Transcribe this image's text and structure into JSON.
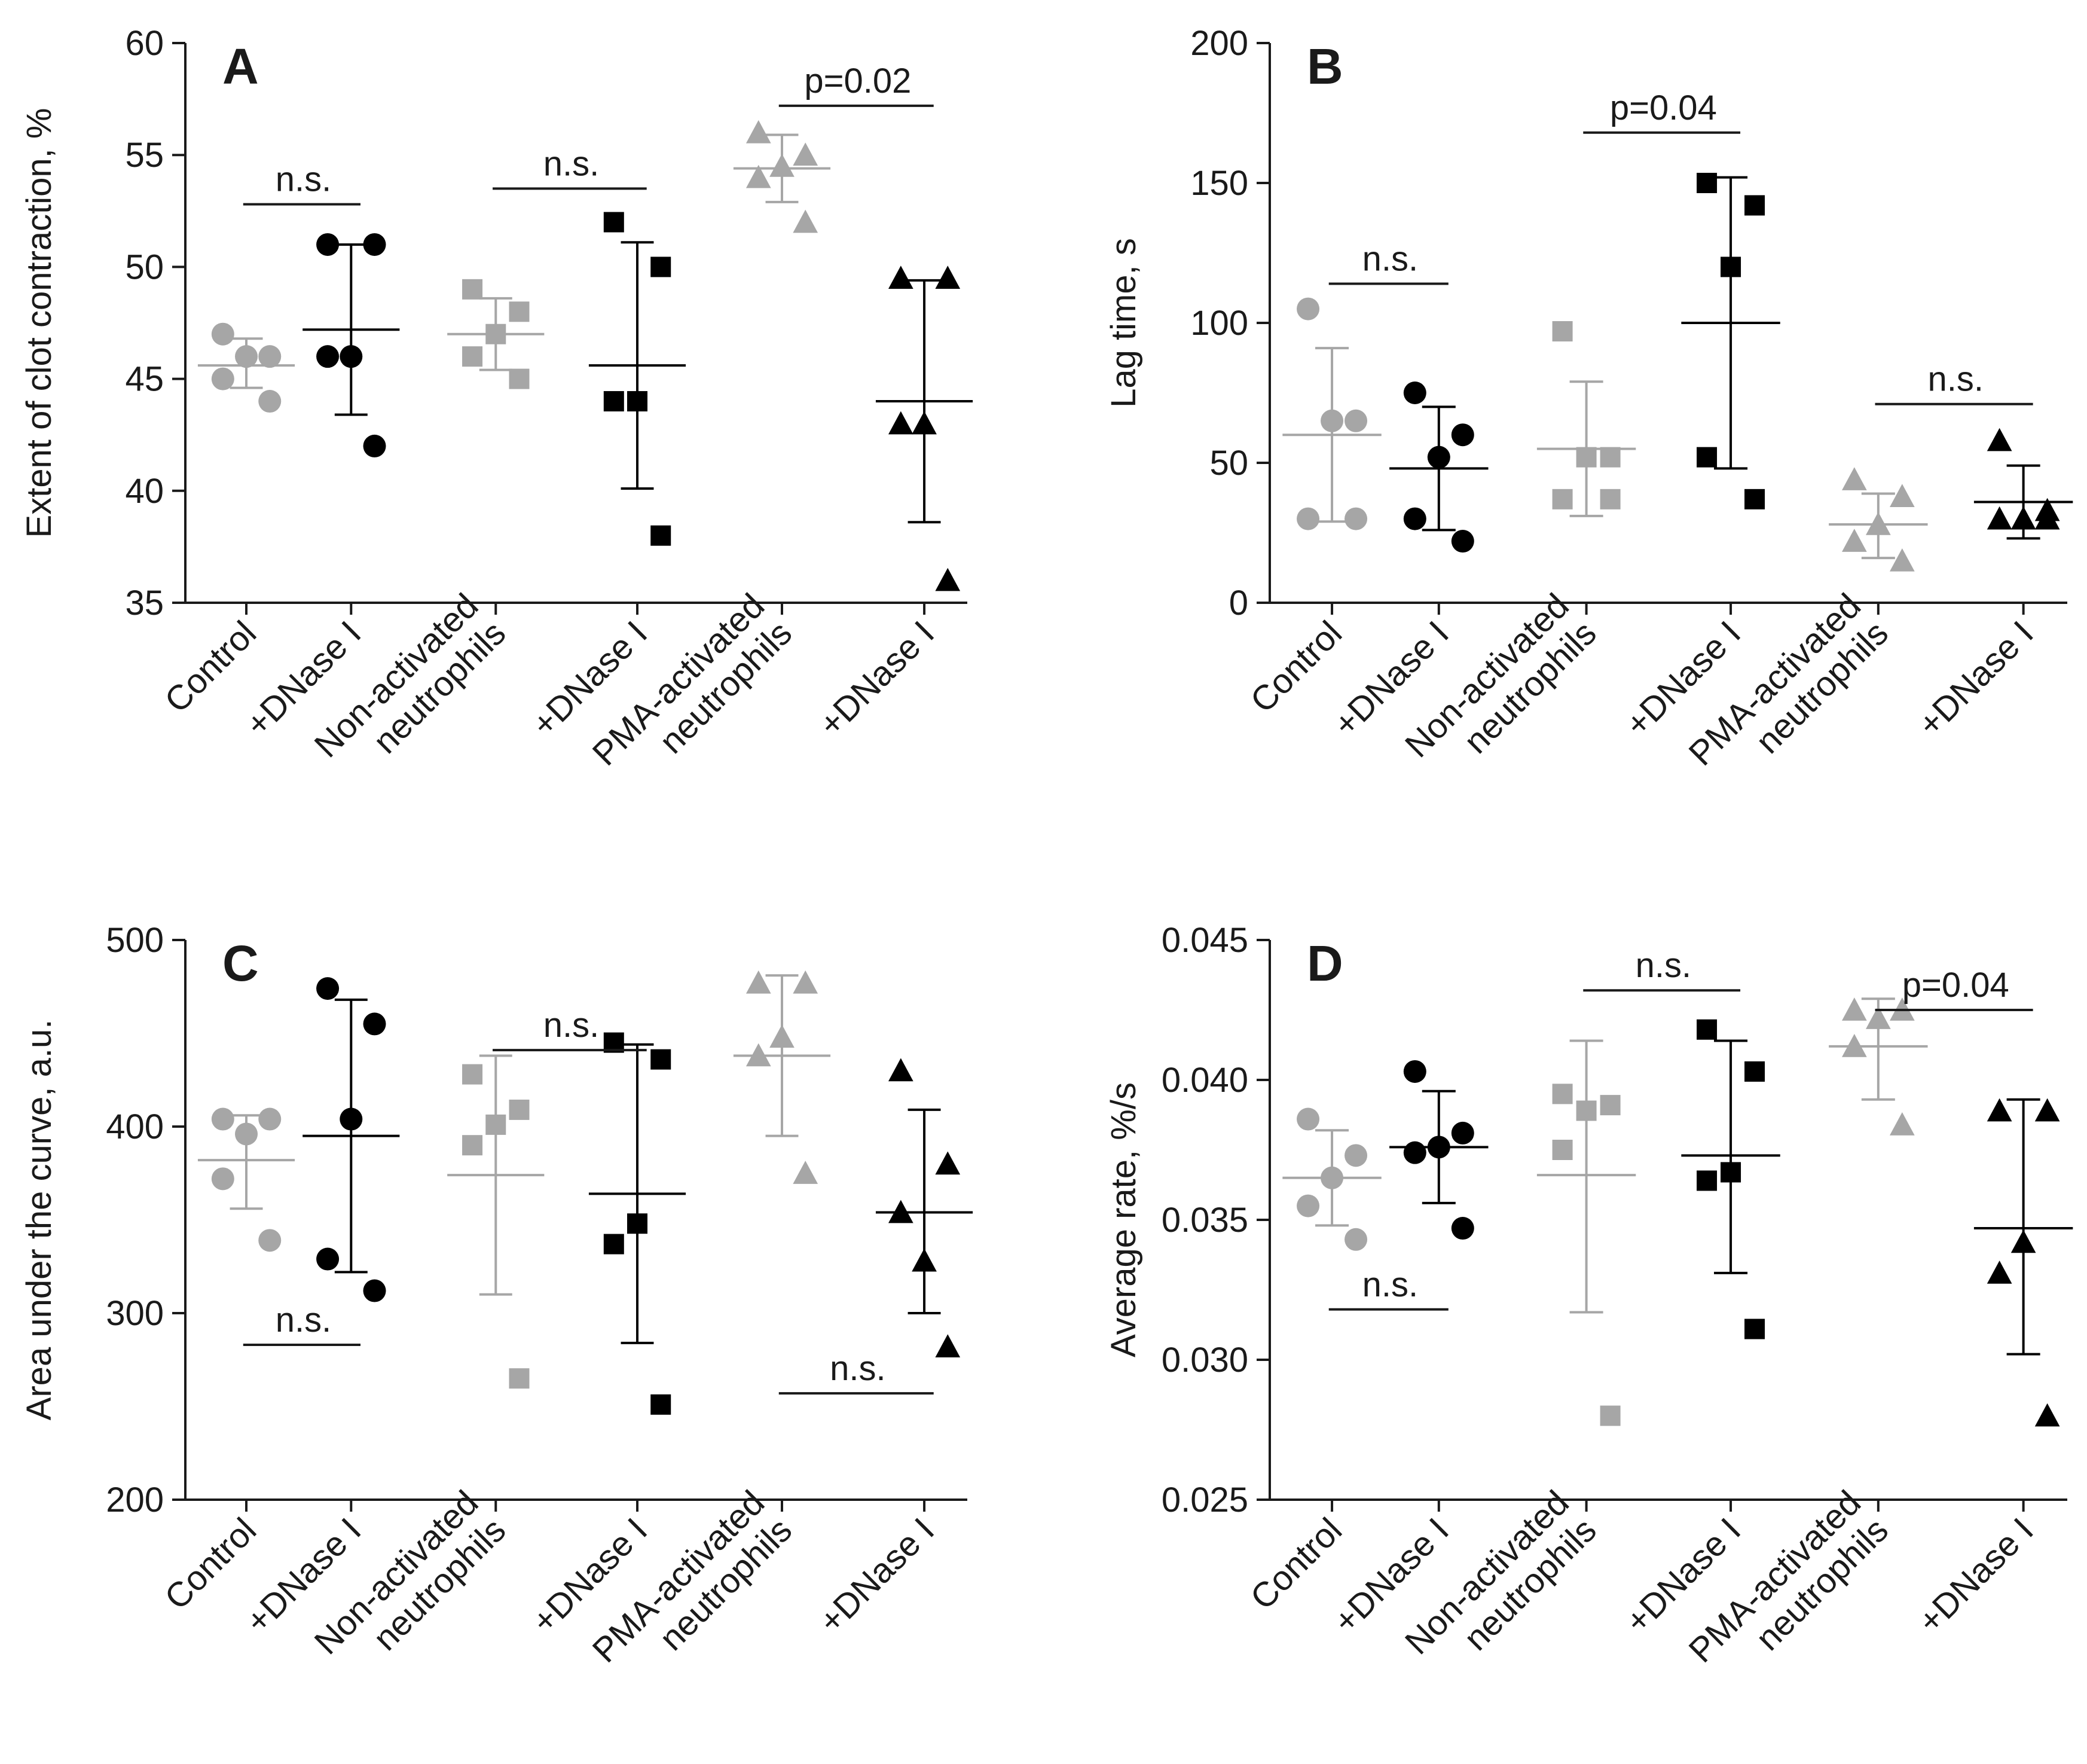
{
  "colors": {
    "gray": "#a6a6a6",
    "black": "#000000",
    "axis": "#1a1a1a"
  },
  "groups": [
    {
      "lines": [
        "Control"
      ],
      "color": "gray",
      "marker": "circle"
    },
    {
      "lines": [
        "+DNase I"
      ],
      "color": "black",
      "marker": "circle"
    },
    {
      "lines": [
        "Non-activated",
        "neutrophils"
      ],
      "color": "gray",
      "marker": "square"
    },
    {
      "lines": [
        "+DNase I"
      ],
      "color": "black",
      "marker": "square"
    },
    {
      "lines": [
        "PMA-activated",
        "neutrophils"
      ],
      "color": "gray",
      "marker": "triangle"
    },
    {
      "lines": [
        "+DNase I"
      ],
      "color": "black",
      "marker": "triangle"
    }
  ],
  "chart_data": [
    {
      "id": "A",
      "letter": "A",
      "type": "scatter",
      "ylabel": "Extent of clot contraction, %",
      "ylim": [
        35,
        60
      ],
      "yticks": [
        "35",
        "40",
        "45",
        "50",
        "55",
        "60"
      ],
      "series": [
        {
          "points": [
            47,
            46,
            46,
            45,
            44
          ],
          "mean": 45.6,
          "sd_low": 44.6,
          "sd_high": 46.8
        },
        {
          "points": [
            51,
            51,
            46,
            46,
            42
          ],
          "mean": 47.2,
          "sd_low": 43.4,
          "sd_high": 51.0
        },
        {
          "points": [
            49,
            48,
            47,
            46,
            45
          ],
          "mean": 47.0,
          "sd_low": 45.4,
          "sd_high": 48.6
        },
        {
          "points": [
            52,
            50,
            44,
            44,
            38
          ],
          "mean": 45.6,
          "sd_low": 40.1,
          "sd_high": 51.1
        },
        {
          "points": [
            56,
            55,
            54.5,
            54,
            52
          ],
          "mean": 54.4,
          "sd_low": 52.9,
          "sd_high": 55.9
        },
        {
          "points": [
            49.5,
            49.5,
            43,
            43,
            36
          ],
          "mean": 44.0,
          "sd_low": 38.6,
          "sd_high": 49.4
        }
      ],
      "annotations": [
        {
          "text": "n.s.",
          "from": 0,
          "to": 1,
          "y": 52.8
        },
        {
          "text": "n.s.",
          "from": 2,
          "to": 3,
          "y": 53.5
        },
        {
          "text": "p=0.02",
          "from": 4,
          "to": 5,
          "y": 57.2
        }
      ]
    },
    {
      "id": "B",
      "letter": "B",
      "type": "scatter",
      "ylabel": "Lag time, s",
      "ylim": [
        0,
        200
      ],
      "yticks": [
        "0",
        "50",
        "100",
        "150",
        "200"
      ],
      "series": [
        {
          "points": [
            105,
            65,
            65,
            30,
            30
          ],
          "mean": 60,
          "sd_low": 29,
          "sd_high": 91
        },
        {
          "points": [
            75,
            60,
            52,
            30,
            22
          ],
          "mean": 48,
          "sd_low": 26,
          "sd_high": 70
        },
        {
          "points": [
            97,
            52,
            52,
            37,
            37
          ],
          "mean": 55,
          "sd_low": 31,
          "sd_high": 79
        },
        {
          "points": [
            150,
            142,
            120,
            52,
            37
          ],
          "mean": 100,
          "sd_low": 48,
          "sd_high": 152
        },
        {
          "points": [
            44,
            38,
            28,
            22,
            15
          ],
          "mean": 28,
          "sd_low": 16,
          "sd_high": 39
        },
        {
          "points": [
            58,
            33,
            30,
            30,
            30
          ],
          "mean": 36,
          "sd_low": 23,
          "sd_high": 49
        }
      ],
      "annotations": [
        {
          "text": "n.s.",
          "from": 0,
          "to": 1,
          "y": 114
        },
        {
          "text": "p=0.04",
          "from": 2,
          "to": 3,
          "y": 168
        },
        {
          "text": "n.s.",
          "from": 4,
          "to": 5,
          "y": 71
        }
      ]
    },
    {
      "id": "C",
      "letter": "C",
      "type": "scatter",
      "ylabel": "Area under the curve, a.u.",
      "ylim": [
        200,
        500
      ],
      "yticks": [
        "200",
        "300",
        "400",
        "500"
      ],
      "series": [
        {
          "points": [
            404,
            404,
            396,
            372,
            339
          ],
          "mean": 382,
          "sd_low": 356,
          "sd_high": 406
        },
        {
          "points": [
            474,
            455,
            404,
            329,
            312
          ],
          "mean": 395,
          "sd_low": 322,
          "sd_high": 468
        },
        {
          "points": [
            428,
            409,
            401,
            390,
            265
          ],
          "mean": 374,
          "sd_low": 310,
          "sd_high": 438
        },
        {
          "points": [
            445,
            436,
            348,
            337,
            251
          ],
          "mean": 364,
          "sd_low": 284,
          "sd_high": 444
        },
        {
          "points": [
            477,
            477,
            448,
            438,
            375
          ],
          "mean": 438,
          "sd_low": 395,
          "sd_high": 481
        },
        {
          "points": [
            430,
            380,
            328,
            354,
            282
          ],
          "mean": 354,
          "sd_low": 300,
          "sd_high": 409
        }
      ],
      "annotations": [
        {
          "text": "n.s.",
          "from": 0,
          "to": 1,
          "y": 283
        },
        {
          "text": "n.s.",
          "from": 2,
          "to": 3,
          "y": 441
        },
        {
          "text": "n.s.",
          "from": 4,
          "to": 5,
          "y": 257
        }
      ]
    },
    {
      "id": "D",
      "letter": "D",
      "type": "scatter",
      "ylabel": "Average rate, %/s",
      "ylim": [
        0.025,
        0.045
      ],
      "yticks": [
        "0.025",
        "0.030",
        "0.035",
        "0.040",
        "0.045"
      ],
      "series": [
        {
          "points": [
            0.0386,
            0.0373,
            0.0365,
            0.0355,
            0.0343
          ],
          "mean": 0.0365,
          "sd_low": 0.0348,
          "sd_high": 0.0382
        },
        {
          "points": [
            0.0403,
            0.0381,
            0.0376,
            0.0374,
            0.0347
          ],
          "mean": 0.0376,
          "sd_low": 0.0356,
          "sd_high": 0.0396
        },
        {
          "points": [
            0.0395,
            0.0391,
            0.0389,
            0.0375,
            0.028
          ],
          "mean": 0.0366,
          "sd_low": 0.0317,
          "sd_high": 0.0414
        },
        {
          "points": [
            0.0418,
            0.0403,
            0.0367,
            0.0364,
            0.0311
          ],
          "mean": 0.0373,
          "sd_low": 0.0331,
          "sd_high": 0.0414
        },
        {
          "points": [
            0.0425,
            0.0425,
            0.0422,
            0.0412,
            0.0384
          ],
          "mean": 0.0412,
          "sd_low": 0.0393,
          "sd_high": 0.0429
        },
        {
          "points": [
            0.0389,
            0.0389,
            0.0342,
            0.0331,
            0.028
          ],
          "mean": 0.0347,
          "sd_low": 0.0302,
          "sd_high": 0.0393
        }
      ],
      "annotations": [
        {
          "text": "n.s.",
          "from": 0,
          "to": 1,
          "y": 0.0318
        },
        {
          "text": "n.s.",
          "from": 2,
          "to": 3,
          "y": 0.0432
        },
        {
          "text": "p=0.04",
          "from": 4,
          "to": 5,
          "y": 0.0425
        }
      ]
    }
  ]
}
